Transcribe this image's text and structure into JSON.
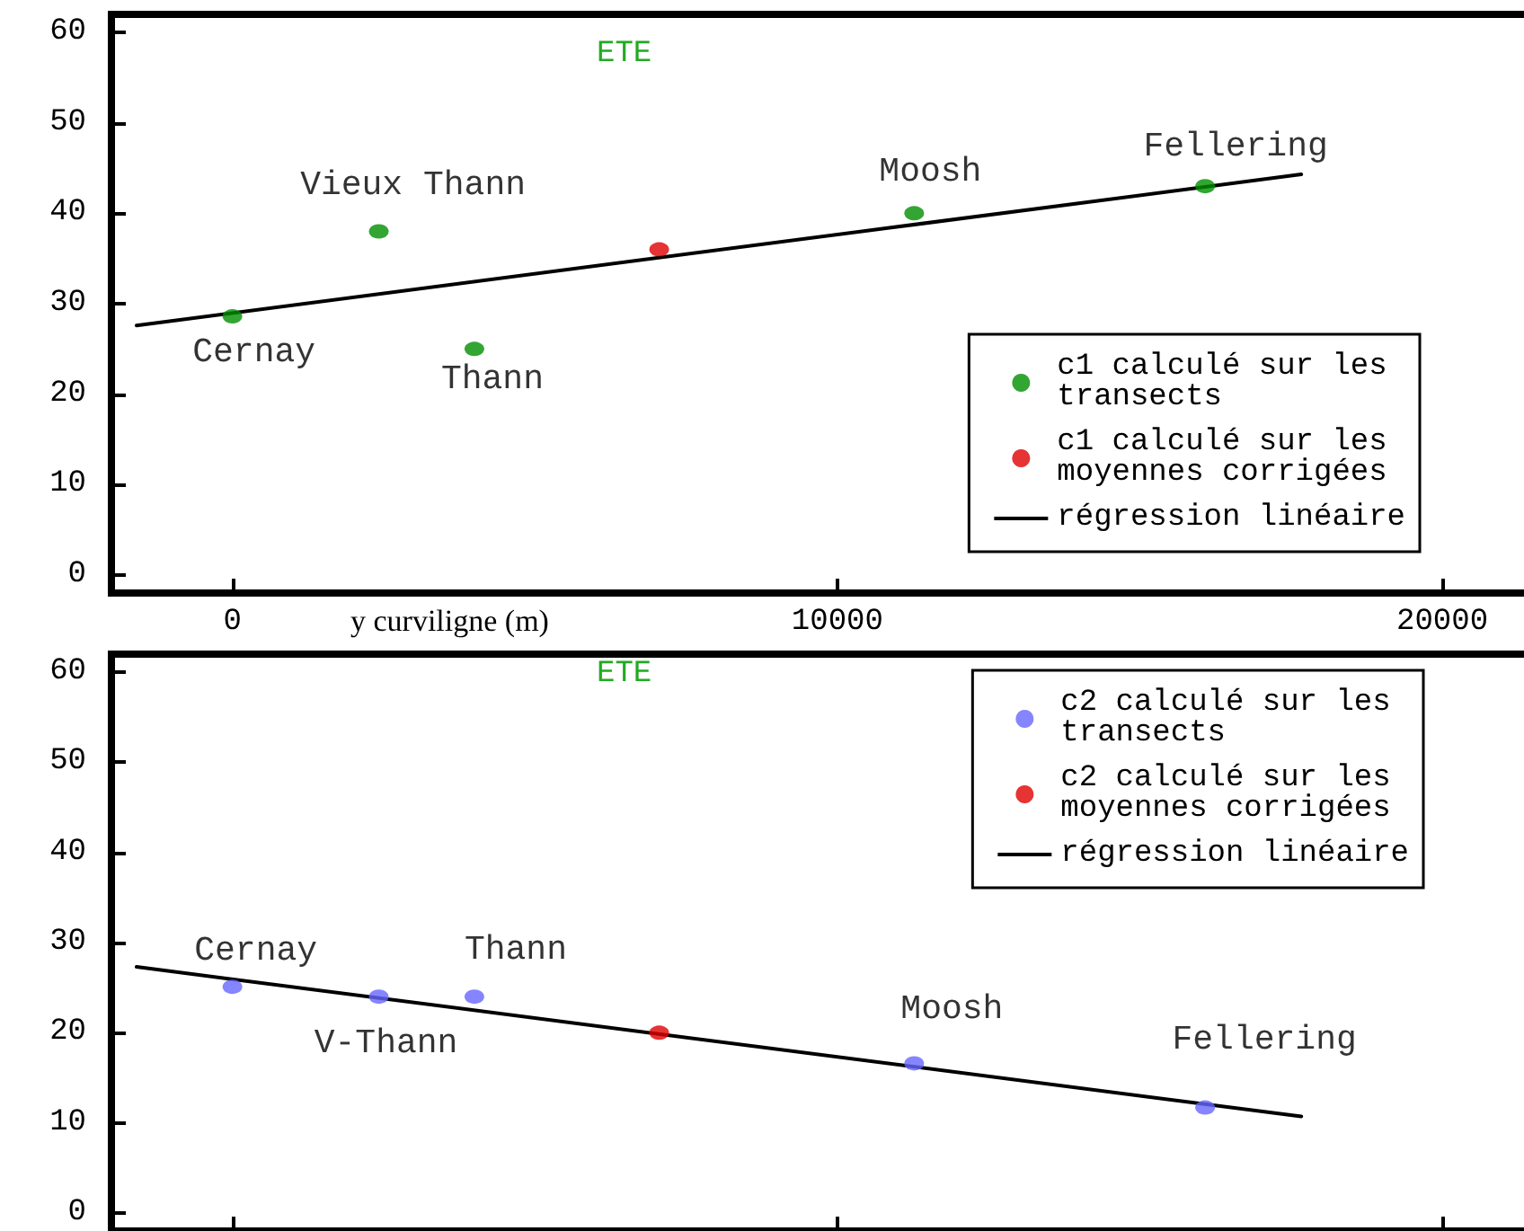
{
  "chart_data": [
    {
      "type": "scatter",
      "title": "ETE",
      "xlabel": "y curviligne (m)",
      "xlim": [
        -2000,
        21500
      ],
      "xticks": [
        0,
        10000,
        20000
      ],
      "ylim": [
        -2,
        62
      ],
      "yticks": [
        0,
        10,
        20,
        30,
        40,
        50,
        60
      ],
      "grid": false,
      "legend": "bottom right",
      "series": [
        {
          "name": "c1 calculé sur les\ntransects",
          "color": "#008f00",
          "marker": "circle",
          "x": [
            0,
            2420,
            4000,
            11270,
            16080
          ],
          "values": [
            28.6,
            38,
            25,
            40,
            43
          ]
        },
        {
          "name": "c1 calculé sur les\nmoyennes corrigées",
          "color": "#e00000",
          "marker": "circle",
          "x": [
            7055
          ],
          "values": [
            36
          ]
        },
        {
          "name": "régression linéaire",
          "type": "line",
          "color": "#000000",
          "marker": "none",
          "x": [
            -1585,
            17670
          ],
          "values": [
            27.6,
            44.3
          ]
        }
      ],
      "annotations": [
        {
          "text": "Cernay",
          "x": 0,
          "y": 28.6
        },
        {
          "text": "Vieux Thann",
          "x": 2420,
          "y": 38
        },
        {
          "text": "Thann",
          "x": 4000,
          "y": 25
        },
        {
          "text": "Moosh",
          "x": 11270,
          "y": 40
        },
        {
          "text": "Fellering",
          "x": 16080,
          "y": 43
        }
      ]
    },
    {
      "type": "scatter",
      "title": "ETE",
      "xlim": [
        -2000,
        21500
      ],
      "xticks": [
        0,
        10000,
        20000
      ],
      "ylim": [
        -2,
        62
      ],
      "yticks": [
        0,
        10,
        20,
        30,
        40,
        50,
        60
      ],
      "tick_labels": "y",
      "grid": false,
      "legend": "top right",
      "series": [
        {
          "name": "c2 calculé sur les\ntransects",
          "color": "#6666ff",
          "marker": "circle",
          "x": [
            0,
            2420,
            4000,
            11270,
            16080
          ],
          "values": [
            25.1,
            24,
            24,
            16.6,
            11.7
          ]
        },
        {
          "name": "c2 calculé sur les\nmoyennes corrigées",
          "color": "#e00000",
          "marker": "circle",
          "x": [
            7055
          ],
          "values": [
            20
          ]
        },
        {
          "name": "régression linéaire",
          "type": "line",
          "color": "#000000",
          "marker": "none",
          "x": [
            -1585,
            17670
          ],
          "values": [
            27.3,
            10.7
          ]
        }
      ],
      "annotations": [
        {
          "text": "Cernay",
          "x": 0,
          "y": 25.1
        },
        {
          "text": "V-Thann",
          "x": 2420,
          "y": 24
        },
        {
          "text": "Thann",
          "x": 4000,
          "y": 24
        },
        {
          "text": "Moosh",
          "x": 11270,
          "y": 16.6
        },
        {
          "text": "Fellering",
          "x": 16080,
          "y": 11.7
        }
      ]
    }
  ]
}
